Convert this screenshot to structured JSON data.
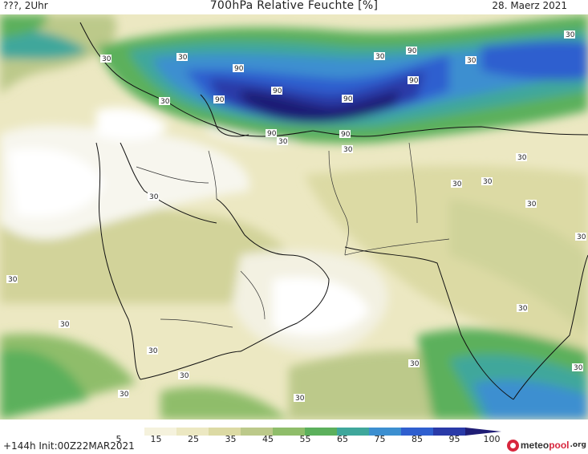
{
  "header": {
    "left": "???, 2Uhr",
    "title": "700hPa Relative Feuchte [%]",
    "right": "28. Maerz 2021"
  },
  "footer": {
    "init": "+144h Init:00Z22MAR2021"
  },
  "logo": {
    "main": "meteo",
    "accent": "pool",
    "suffix": ".org"
  },
  "colorbar": {
    "labels": [
      "5",
      "15",
      "25",
      "35",
      "45",
      "55",
      "65",
      "75",
      "85",
      "95",
      "100"
    ],
    "colors": [
      "#ffffff",
      "#f5f2dd",
      "#ece8c2",
      "#dcdaa4",
      "#bcc98a",
      "#8fbd6a",
      "#5cb05c",
      "#3fa79b",
      "#3c8fd0",
      "#2f5fcf",
      "#2a3aa8",
      "#1f1d75"
    ]
  },
  "contour_labels": [
    "90",
    "90",
    "90",
    "90",
    "90",
    "90",
    "90",
    "90",
    "30",
    "30",
    "30",
    "30",
    "30",
    "30",
    "30",
    "30",
    "30",
    "30",
    "30",
    "30",
    "30",
    "30",
    "30",
    "30",
    "30",
    "30",
    "30",
    "30",
    "30",
    "30",
    "30"
  ]
}
